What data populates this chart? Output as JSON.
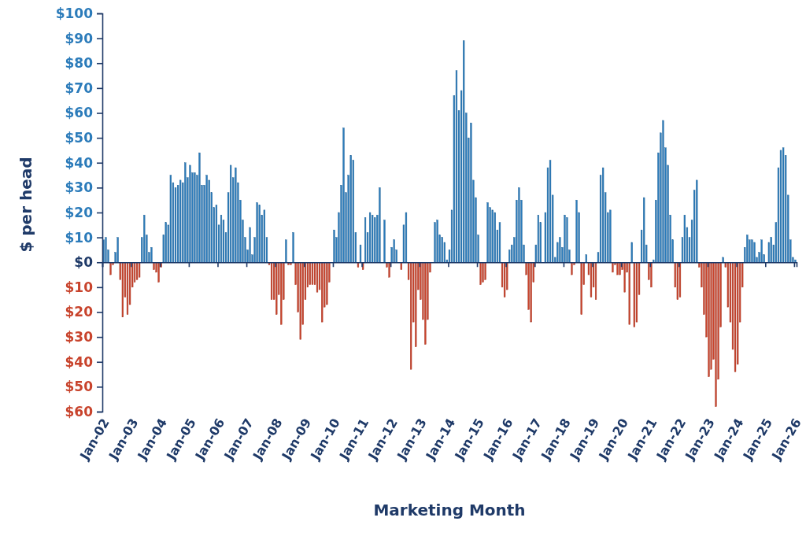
{
  "chart_data": {
    "type": "bar",
    "stacked": true,
    "xlabel": "Marketing Month",
    "ylabel": "$ per head",
    "x": [
      "2002-01",
      "2002-02",
      "2002-03",
      "2002-04",
      "2002-05",
      "2002-06",
      "2002-07",
      "2002-08",
      "2002-09",
      "2002-10",
      "2002-11",
      "2002-12",
      "2003-01",
      "2003-02",
      "2003-03",
      "2003-04",
      "2003-05",
      "2003-06",
      "2003-07",
      "2003-08",
      "2003-09",
      "2003-10",
      "2003-11",
      "2003-12",
      "2004-01",
      "2004-02",
      "2004-03",
      "2004-04",
      "2004-05",
      "2004-06",
      "2004-07",
      "2004-08",
      "2004-09",
      "2004-10",
      "2004-11",
      "2004-12",
      "2005-01",
      "2005-02",
      "2005-03",
      "2005-04",
      "2005-05",
      "2005-06",
      "2005-07",
      "2005-08",
      "2005-09",
      "2005-10",
      "2005-11",
      "2005-12",
      "2006-01",
      "2006-02",
      "2006-03",
      "2006-04",
      "2006-05",
      "2006-06",
      "2006-07",
      "2006-08",
      "2006-09",
      "2006-10",
      "2006-11",
      "2006-12",
      "2007-01",
      "2007-02",
      "2007-03",
      "2007-04",
      "2007-05",
      "2007-06",
      "2007-07",
      "2007-08",
      "2007-09",
      "2007-10",
      "2007-11",
      "2007-12",
      "2008-01",
      "2008-02",
      "2008-03",
      "2008-04",
      "2008-05",
      "2008-06",
      "2008-07",
      "2008-08",
      "2008-09",
      "2008-10",
      "2008-11",
      "2008-12",
      "2009-01",
      "2009-02",
      "2009-03",
      "2009-04",
      "2009-05",
      "2009-06",
      "2009-07",
      "2009-08",
      "2009-09",
      "2009-10",
      "2009-11",
      "2009-12",
      "2010-01",
      "2010-02",
      "2010-03",
      "2010-04",
      "2010-05",
      "2010-06",
      "2010-07",
      "2010-08",
      "2010-09",
      "2010-10",
      "2010-11",
      "2010-12",
      "2011-01",
      "2011-02",
      "2011-03",
      "2011-04",
      "2011-05",
      "2011-06",
      "2011-07",
      "2011-08",
      "2011-09",
      "2011-10",
      "2011-11",
      "2011-12",
      "2012-01",
      "2012-02",
      "2012-03",
      "2012-04",
      "2012-05",
      "2012-06",
      "2012-07",
      "2012-08",
      "2012-09",
      "2012-10",
      "2012-11",
      "2012-12",
      "2013-01",
      "2013-02",
      "2013-03",
      "2013-04",
      "2013-05",
      "2013-06",
      "2013-07",
      "2013-08",
      "2013-09",
      "2013-10",
      "2013-11",
      "2013-12",
      "2014-01",
      "2014-02",
      "2014-03",
      "2014-04",
      "2014-05",
      "2014-06",
      "2014-07",
      "2014-08",
      "2014-09",
      "2014-10",
      "2014-11",
      "2014-12",
      "2015-01",
      "2015-02",
      "2015-03",
      "2015-04",
      "2015-05",
      "2015-06",
      "2015-07",
      "2015-08",
      "2015-09",
      "2015-10",
      "2015-11",
      "2015-12",
      "2016-01",
      "2016-02",
      "2016-03",
      "2016-04",
      "2016-05",
      "2016-06",
      "2016-07",
      "2016-08",
      "2016-09",
      "2016-10",
      "2016-11",
      "2016-12",
      "2017-01",
      "2017-02",
      "2017-03",
      "2017-04",
      "2017-05",
      "2017-06",
      "2017-07",
      "2017-08",
      "2017-09",
      "2017-10",
      "2017-11",
      "2017-12",
      "2018-01",
      "2018-02",
      "2018-03",
      "2018-04",
      "2018-05",
      "2018-06",
      "2018-07",
      "2018-08",
      "2018-09",
      "2018-10",
      "2018-11",
      "2018-12",
      "2019-01",
      "2019-02",
      "2019-03",
      "2019-04",
      "2019-05",
      "2019-06",
      "2019-07",
      "2019-08",
      "2019-09",
      "2019-10",
      "2019-11",
      "2019-12",
      "2020-01",
      "2020-02",
      "2020-03",
      "2020-04",
      "2020-05",
      "2020-06",
      "2020-07",
      "2020-08",
      "2020-09",
      "2020-10",
      "2020-11",
      "2020-12",
      "2021-01",
      "2021-02",
      "2021-03",
      "2021-04",
      "2021-05",
      "2021-06",
      "2021-07",
      "2021-08",
      "2021-09",
      "2021-10",
      "2021-11",
      "2021-12",
      "2022-01",
      "2022-02",
      "2022-03",
      "2022-04",
      "2022-05",
      "2022-06",
      "2022-07",
      "2022-08",
      "2022-09",
      "2022-10",
      "2022-11",
      "2022-12",
      "2023-01",
      "2023-02",
      "2023-03",
      "2023-04",
      "2023-05",
      "2023-06",
      "2023-07",
      "2023-08",
      "2023-09",
      "2023-10",
      "2023-11",
      "2023-12",
      "2024-01",
      "2024-02",
      "2024-03",
      "2024-04",
      "2024-05",
      "2024-06",
      "2024-07",
      "2024-08",
      "2024-09",
      "2024-10",
      "2024-11",
      "2024-12",
      "2025-01",
      "2025-02",
      "2025-03",
      "2025-04",
      "2025-05",
      "2025-06",
      "2025-07",
      "2025-08",
      "2025-09",
      "2025-10",
      "2025-11",
      "2025-12",
      "2026-01"
    ],
    "series": [
      {
        "color": "#2b7bba",
        "values": [
          9,
          10,
          5,
          null,
          null,
          4,
          10,
          null,
          null,
          null,
          null,
          null,
          null,
          null,
          null,
          null,
          10,
          19,
          11,
          4,
          6,
          null,
          null,
          null,
          null,
          11,
          16,
          15,
          35,
          32,
          30,
          31,
          33,
          32,
          40,
          34,
          39,
          36,
          36,
          35,
          44,
          31,
          31,
          35,
          33,
          28,
          22,
          23,
          15,
          19,
          17,
          12,
          28,
          39,
          34,
          38,
          32,
          25,
          17,
          10,
          5,
          14,
          3,
          10,
          24,
          23,
          19,
          21,
          10,
          null,
          null,
          null,
          null,
          null,
          null,
          null,
          9,
          null,
          null,
          12,
          null,
          null,
          null,
          null,
          null,
          null,
          null,
          null,
          null,
          null,
          null,
          null,
          null,
          null,
          null,
          0,
          13,
          10,
          20,
          31,
          54,
          28,
          35,
          43,
          41,
          12,
          null,
          7,
          null,
          18,
          12,
          20,
          19,
          18,
          19,
          30,
          0,
          17,
          null,
          null,
          6,
          9,
          5,
          0,
          null,
          15,
          20,
          null,
          null,
          null,
          null,
          null,
          null,
          null,
          null,
          null,
          null,
          0,
          16,
          17,
          11,
          10,
          8,
          1,
          5,
          21,
          67,
          77,
          61,
          69,
          89,
          60,
          50,
          56,
          33,
          26,
          11,
          null,
          null,
          null,
          24,
          22,
          21,
          20,
          13,
          16,
          null,
          null,
          null,
          5,
          7,
          10,
          25,
          30,
          25,
          7,
          null,
          null,
          null,
          null,
          7,
          19,
          16,
          0,
          20,
          38,
          41,
          27,
          2,
          8,
          10,
          6,
          19,
          18,
          5,
          null,
          null,
          25,
          20,
          null,
          null,
          3,
          null,
          null,
          null,
          null,
          4,
          35,
          38,
          28,
          20,
          21,
          null,
          null,
          null,
          null,
          null,
          null,
          null,
          null,
          8,
          null,
          null,
          null,
          13,
          26,
          7,
          null,
          null,
          1,
          25,
          44,
          52,
          57,
          46,
          39,
          19,
          9,
          null,
          null,
          null,
          10,
          19,
          14,
          10,
          17,
          29,
          33,
          null,
          null,
          null,
          null,
          null,
          null,
          null,
          null,
          null,
          null,
          2,
          null,
          null,
          null,
          null,
          null,
          null,
          null,
          null,
          6,
          11,
          9,
          9,
          8,
          2,
          4,
          9,
          3,
          null,
          8,
          10,
          7,
          16,
          38,
          45,
          46,
          43,
          27,
          9,
          2,
          1
        ]
      },
      {
        "color": "#c8432c",
        "values": [
          null,
          null,
          null,
          -5,
          -1,
          null,
          null,
          -7,
          -22,
          -14,
          -21,
          -17,
          -10,
          -8,
          -7,
          -6,
          null,
          null,
          null,
          null,
          null,
          -3,
          -4,
          -8,
          -2,
          null,
          null,
          null,
          null,
          null,
          null,
          null,
          null,
          null,
          null,
          null,
          null,
          null,
          null,
          null,
          null,
          null,
          null,
          null,
          null,
          null,
          null,
          null,
          null,
          null,
          null,
          null,
          null,
          null,
          null,
          null,
          null,
          null,
          null,
          null,
          null,
          null,
          null,
          null,
          null,
          null,
          null,
          null,
          null,
          -1,
          -15,
          -15,
          -21,
          -13,
          -25,
          -15,
          null,
          -1,
          -1,
          null,
          -9,
          -20,
          -31,
          -25,
          -15,
          -10,
          -9,
          -9,
          -9,
          -12,
          -11,
          -24,
          -18,
          -17,
          -8,
          null,
          null,
          null,
          null,
          null,
          null,
          null,
          null,
          null,
          null,
          null,
          -2,
          null,
          -3,
          null,
          null,
          null,
          null,
          null,
          null,
          null,
          null,
          null,
          -2,
          -6,
          null,
          null,
          null,
          null,
          -3,
          null,
          null,
          -7,
          -43,
          -24,
          -34,
          -11,
          -15,
          -23,
          -33,
          -23,
          -4,
          null,
          null,
          null,
          null,
          null,
          null,
          null,
          null,
          null,
          null,
          null,
          null,
          null,
          null,
          null,
          null,
          null,
          null,
          null,
          null,
          -9,
          -8,
          -7,
          null,
          null,
          null,
          null,
          null,
          null,
          -10,
          -14,
          -11,
          null,
          null,
          null,
          null,
          null,
          null,
          null,
          -5,
          -19,
          -24,
          -8,
          null,
          null,
          null,
          null,
          null,
          null,
          null,
          null,
          null,
          null,
          null,
          null,
          null,
          null,
          null,
          -5,
          -1,
          null,
          null,
          -21,
          -9,
          null,
          -5,
          -14,
          -10,
          -15,
          null,
          null,
          null,
          null,
          null,
          null,
          -4,
          -1,
          -5,
          -5,
          -3,
          -12,
          -4,
          -25,
          null,
          -26,
          -24,
          -13,
          null,
          null,
          null,
          -7,
          -10,
          null,
          null,
          null,
          null,
          null,
          null,
          null,
          null,
          null,
          -10,
          -15,
          -14,
          null,
          null,
          null,
          null,
          null,
          null,
          null,
          -2,
          -10,
          -21,
          -30,
          -46,
          -43,
          -39,
          -58,
          -47,
          -26,
          null,
          -2,
          -18,
          -24,
          -35,
          -44,
          -41,
          -24,
          -10,
          null,
          null,
          null,
          null,
          null,
          null,
          null,
          null,
          null,
          null,
          null,
          null,
          null,
          null,
          null,
          null,
          null,
          null,
          null,
          null,
          null,
          null
        ]
      }
    ],
    "xlim": [
      "2002-01",
      "2026-02"
    ],
    "xticks": [
      {
        "value": "2002-01",
        "label": "Jan-02"
      },
      {
        "value": "2003-01",
        "label": "Jan-03"
      },
      {
        "value": "2004-01",
        "label": "Jan-04"
      },
      {
        "value": "2005-01",
        "label": "Jan-05"
      },
      {
        "value": "2006-01",
        "label": "Jan-06"
      },
      {
        "value": "2007-01",
        "label": "Jan-07"
      },
      {
        "value": "2008-01",
        "label": "Jan-08"
      },
      {
        "value": "2009-01",
        "label": "Jan-09"
      },
      {
        "value": "2010-01",
        "label": "Jan-10"
      },
      {
        "value": "2011-01",
        "label": "Jan-11"
      },
      {
        "value": "2012-01",
        "label": "Jan-12"
      },
      {
        "value": "2013-01",
        "label": "Jan-13"
      },
      {
        "value": "2014-01",
        "label": "Jan-14"
      },
      {
        "value": "2015-01",
        "label": "Jan-15"
      },
      {
        "value": "2016-01",
        "label": "Jan-16"
      },
      {
        "value": "2017-01",
        "label": "Jan-17"
      },
      {
        "value": "2018-01",
        "label": "Jan-18"
      },
      {
        "value": "2019-01",
        "label": "Jan-19"
      },
      {
        "value": "2020-01",
        "label": "Jan-20"
      },
      {
        "value": "2021-01",
        "label": "Jan-21"
      },
      {
        "value": "2022-01",
        "label": "Jan-22"
      },
      {
        "value": "2023-01",
        "label": "Jan-23"
      },
      {
        "value": "2024-01",
        "label": "Jan-24"
      },
      {
        "value": "2025-01",
        "label": "Jan-25"
      },
      {
        "value": "2026-01",
        "label": "Jan-26"
      }
    ],
    "ylim": [
      -60,
      100
    ],
    "yticks": [
      {
        "value": -60,
        "label": "$60"
      },
      {
        "value": -50,
        "label": "$50"
      },
      {
        "value": -40,
        "label": "$40"
      },
      {
        "value": -30,
        "label": "$30"
      },
      {
        "value": -20,
        "label": "$20"
      },
      {
        "value": -10,
        "label": "$10"
      },
      {
        "value": 0,
        "label": "$0"
      },
      {
        "value": 10,
        "label": "$10"
      },
      {
        "value": 20,
        "label": "$20"
      },
      {
        "value": 30,
        "label": "$30"
      },
      {
        "value": 40,
        "label": "$40"
      },
      {
        "value": 50,
        "label": "$50"
      },
      {
        "value": 60,
        "label": "$60"
      },
      {
        "value": 70,
        "label": "$70"
      },
      {
        "value": 80,
        "label": "$80"
      },
      {
        "value": 90,
        "label": "$90"
      },
      {
        "value": 100,
        "label": "$100"
      }
    ]
  }
}
